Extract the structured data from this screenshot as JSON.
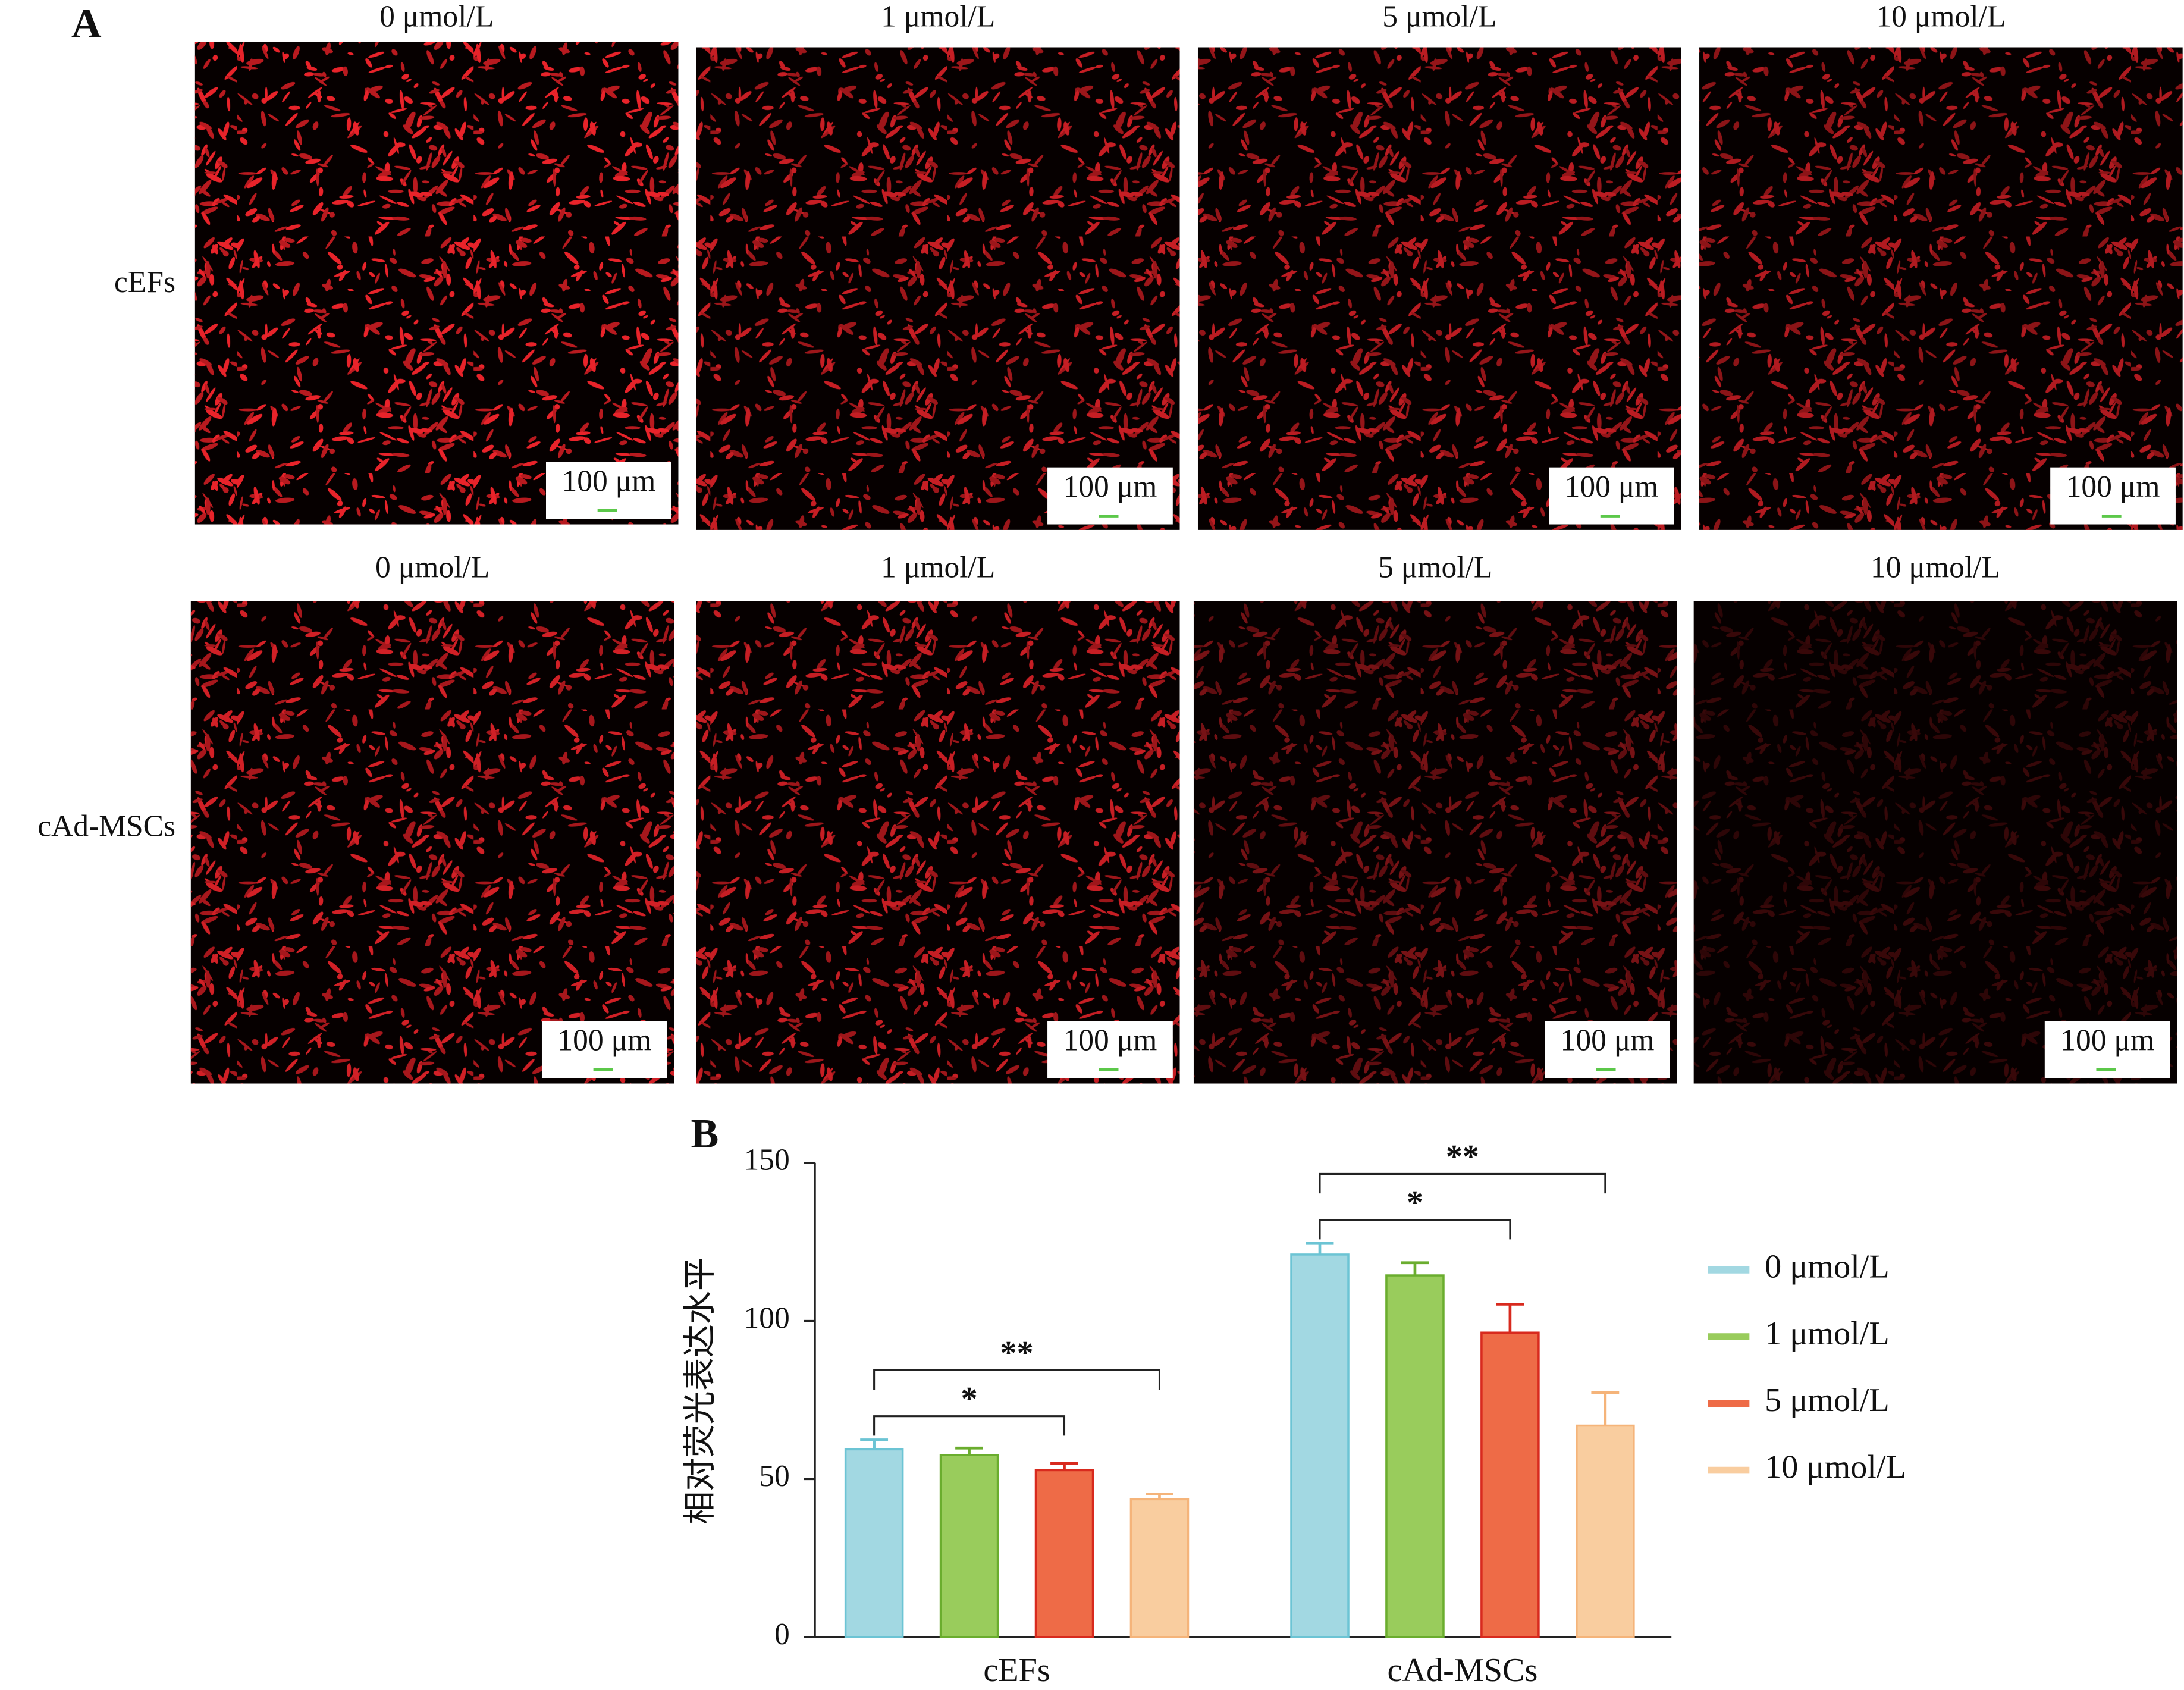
{
  "panel_a": {
    "label": "A",
    "rows": [
      {
        "label": "cEFs",
        "images": [
          {
            "title": "0 μmol/L",
            "scale_bar": "100 μm"
          },
          {
            "title": "1 μmol/L",
            "scale_bar": "100 μm"
          },
          {
            "title": "5 μmol/L",
            "scale_bar": "100 μm"
          },
          {
            "title": "10 μmol/L",
            "scale_bar": "100 μm"
          }
        ]
      },
      {
        "label": "cAd-MSCs",
        "images": [
          {
            "title": "0 μmol/L",
            "scale_bar": "100 μm"
          },
          {
            "title": "1 μmol/L",
            "scale_bar": "100 μm"
          },
          {
            "title": "5 μmol/L",
            "scale_bar": "100 μm"
          },
          {
            "title": "10 μmol/L",
            "scale_bar": "100 μm"
          }
        ]
      }
    ]
  },
  "chart_data": {
    "type": "bar",
    "panel_label": "B",
    "y_label": "相对荧光表达水平",
    "categories": [
      "cEFs",
      "cAd-MSCs"
    ],
    "series": [
      {
        "name": "0 μmol/L",
        "color": "#a2d8e2",
        "edge_color": "#6cc4d4",
        "values": [
          59.4,
          121
        ],
        "errors": [
          3,
          3.5
        ]
      },
      {
        "name": "1 μmol/L",
        "color": "#99cc5c",
        "edge_color": "#6aad2e",
        "values": [
          57.6,
          114.4
        ],
        "errors": [
          2.2,
          4
        ]
      },
      {
        "name": "5 μmol/L",
        "color": "#ee6b47",
        "edge_color": "#d82a1e",
        "values": [
          52.8,
          96.3
        ],
        "errors": [
          2.2,
          9
        ]
      },
      {
        "name": "10 μmol/L",
        "color": "#f9cd9f",
        "edge_color": "#f5b47a",
        "values": [
          43.6,
          66.9
        ],
        "errors": [
          1.7,
          10.5
        ]
      }
    ],
    "annotations": [
      {
        "text": "*",
        "category": 0,
        "between": [
          0,
          2
        ]
      },
      {
        "text": "**",
        "category": 0,
        "between": [
          0,
          3
        ]
      },
      {
        "text": "*",
        "category": 1,
        "between": [
          0,
          2
        ]
      },
      {
        "text": "**",
        "category": 1,
        "between": [
          0,
          3
        ]
      }
    ],
    "ylim": [
      0,
      150
    ],
    "yticks": [
      0,
      50,
      100,
      150
    ]
  }
}
